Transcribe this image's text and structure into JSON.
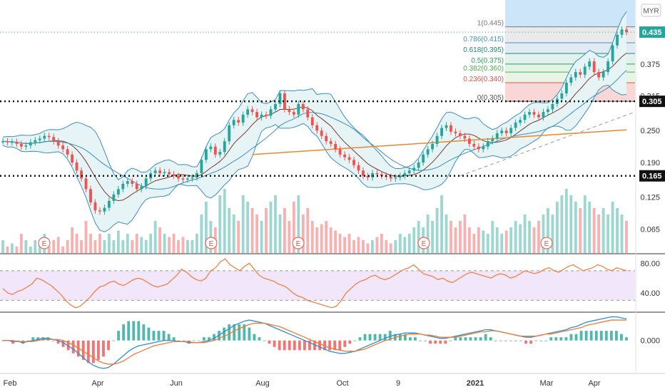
{
  "colors": {
    "up": "#26a69a",
    "down": "#ef5350",
    "bb_line": "#3c8fbf",
    "bb_fill": "#e6f4f6",
    "sma_line": "#7a3b2e",
    "long_ma": "#f0862a",
    "rsi_line": "#f07b35",
    "rsi_fill": "#f2e6fb",
    "macd_line": "#2e8fd6",
    "signal_line": "#f07b35",
    "axis_text": "#333333",
    "last_price_bg": "#26a69a"
  },
  "header": {
    "currency": "MYR"
  },
  "chart_data": [
    {
      "type": "candlestick",
      "title": "",
      "ylim": [
        0.02,
        0.49
      ],
      "y_ticks": [
        "0.065",
        "0.125",
        "0.190",
        "0.250",
        "0.315",
        "0.375"
      ],
      "x_ticks": [
        "Feb",
        "Apr",
        "Jun",
        "Aug",
        "Oct",
        "9",
        "2021",
        "Mar",
        "Apr"
      ],
      "x_ticks_bold": [
        "2021"
      ],
      "price_labels": [
        {
          "text": "0.435",
          "value": 0.435,
          "style": "last"
        },
        {
          "text": "0.305",
          "value": 0.305,
          "style": "level"
        },
        {
          "text": "0.165",
          "value": 0.165,
          "style": "level"
        }
      ],
      "horizontal_levels": [
        0.305,
        0.165
      ],
      "fibonacci": {
        "levels": [
          {
            "label": "1(0.445)",
            "value": 0.445,
            "color": "#777777"
          },
          {
            "label": "0.786(0.415)",
            "value": 0.415,
            "color": "#4a90c8"
          },
          {
            "label": "0.618(0.395)",
            "value": 0.395,
            "color": "#1f8a70"
          },
          {
            "label": "0.5(0.375)",
            "value": 0.375,
            "color": "#2e9c5a"
          },
          {
            "label": "0.382(0.360)",
            "value": 0.36,
            "color": "#4caf50"
          },
          {
            "label": "0.236(0.340)",
            "value": 0.34,
            "color": "#e0524a"
          },
          {
            "label": "0(0.305)",
            "value": 0.305,
            "color": "#555555"
          }
        ]
      },
      "earnings_markers": [
        "E",
        "E",
        "E",
        "E",
        "E"
      ],
      "price_path": [
        0.23,
        0.228,
        0.229,
        0.225,
        0.22,
        0.222,
        0.228,
        0.232,
        0.235,
        0.24,
        0.238,
        0.23,
        0.222,
        0.215,
        0.205,
        0.19,
        0.175,
        0.16,
        0.14,
        0.115,
        0.1,
        0.098,
        0.105,
        0.118,
        0.13,
        0.14,
        0.15,
        0.155,
        0.15,
        0.14,
        0.145,
        0.16,
        0.17,
        0.175,
        0.17,
        0.172,
        0.168,
        0.165,
        0.16,
        0.158,
        0.16,
        0.162,
        0.17,
        0.195,
        0.215,
        0.22,
        0.205,
        0.21,
        0.23,
        0.26,
        0.27,
        0.265,
        0.28,
        0.29,
        0.285,
        0.275,
        0.28,
        0.278,
        0.29,
        0.3,
        0.32,
        0.29,
        0.285,
        0.28,
        0.3,
        0.29,
        0.275,
        0.26,
        0.25,
        0.24,
        0.23,
        0.225,
        0.215,
        0.205,
        0.2,
        0.195,
        0.185,
        0.175,
        0.165,
        0.162,
        0.17,
        0.168,
        0.165,
        0.163,
        0.16,
        0.162,
        0.165,
        0.17,
        0.175,
        0.18,
        0.19,
        0.205,
        0.215,
        0.225,
        0.24,
        0.255,
        0.26,
        0.248,
        0.245,
        0.24,
        0.235,
        0.225,
        0.22,
        0.215,
        0.22,
        0.23,
        0.235,
        0.245,
        0.25,
        0.245,
        0.255,
        0.265,
        0.27,
        0.28,
        0.285,
        0.28,
        0.275,
        0.285,
        0.29,
        0.3,
        0.31,
        0.32,
        0.34,
        0.35,
        0.36,
        0.355,
        0.37,
        0.38,
        0.36,
        0.35,
        0.36,
        0.38,
        0.41,
        0.43,
        0.44,
        0.435
      ],
      "volume_path": [
        0.2,
        0.1,
        0.15,
        0.1,
        0.3,
        0.2,
        0.1,
        0.2,
        0.15,
        0.3,
        0.1,
        0.2,
        0.25,
        0.1,
        0.2,
        0.4,
        0.3,
        0.2,
        0.5,
        0.3,
        0.2,
        0.3,
        0.2,
        0.3,
        0.2,
        0.35,
        0.2,
        0.3,
        0.2,
        0.3,
        0.25,
        0.2,
        0.3,
        0.5,
        0.4,
        0.3,
        0.25,
        0.3,
        0.2,
        0.25,
        0.2,
        0.2,
        0.3,
        0.6,
        0.8,
        0.5,
        0.4,
        0.9,
        1.0,
        0.7,
        0.6,
        0.5,
        0.9,
        0.8,
        0.7,
        0.6,
        0.5,
        0.7,
        0.8,
        0.9,
        0.6,
        0.7,
        0.5,
        0.8,
        0.9,
        0.6,
        0.7,
        0.5,
        0.4,
        0.45,
        0.5,
        0.4,
        0.35,
        0.3,
        0.25,
        0.3,
        0.2,
        0.25,
        0.2,
        0.15,
        0.2,
        0.25,
        0.3,
        0.2,
        0.15,
        0.2,
        0.3,
        0.25,
        0.3,
        0.4,
        0.5,
        0.4,
        0.6,
        0.5,
        0.7,
        0.9,
        0.6,
        0.5,
        0.4,
        0.5,
        0.6,
        0.4,
        0.3,
        0.4,
        0.35,
        0.3,
        0.5,
        0.4,
        0.3,
        0.35,
        0.4,
        0.5,
        0.45,
        0.6,
        0.5,
        0.4,
        0.5,
        0.6,
        0.7,
        0.6,
        0.8,
        0.9,
        1.0,
        0.9,
        0.8,
        0.7,
        0.9,
        0.8,
        0.7,
        0.6,
        0.7,
        0.6,
        0.8,
        0.7,
        0.6,
        0.5
      ]
    },
    {
      "type": "line",
      "name": "RSI panel",
      "ylim": [
        15,
        92
      ],
      "y_ticks": [
        "80.00",
        "40.00"
      ],
      "band": [
        30,
        70
      ],
      "values": [
        46,
        40,
        38,
        42,
        44,
        48,
        52,
        60,
        58,
        54,
        50,
        44,
        38,
        30,
        24,
        20,
        22,
        28,
        34,
        42,
        48,
        50,
        54,
        56,
        52,
        50,
        54,
        58,
        60,
        58,
        54,
        50,
        48,
        50,
        52,
        58,
        64,
        72,
        68,
        62,
        58,
        56,
        60,
        70,
        74,
        82,
        86,
        78,
        74,
        70,
        76,
        80,
        72,
        64,
        60,
        58,
        56,
        52,
        50,
        46,
        40,
        36,
        34,
        30,
        28,
        26,
        24,
        22,
        20,
        22,
        30,
        40,
        46,
        52,
        56,
        58,
        62,
        64,
        60,
        58,
        60,
        64,
        68,
        72,
        74,
        78,
        72,
        66,
        64,
        62,
        58,
        60,
        56,
        54,
        58,
        62,
        66,
        68,
        66,
        64,
        62,
        60,
        64,
        66,
        64,
        60,
        62,
        66,
        70,
        68,
        66,
        68,
        72,
        74,
        70,
        68,
        72,
        76,
        78,
        74,
        70,
        72,
        74,
        78,
        76,
        72,
        70,
        74,
        72,
        70
      ]
    },
    {
      "type": "bar+line",
      "name": "MACD panel",
      "ylim": [
        -0.03,
        0.025
      ],
      "y_ticks": [
        "0.000"
      ],
      "macd": [
        0.0,
        0.0,
        -0.001,
        -0.001,
        -0.002,
        -0.001,
        0.0,
        0.001,
        0.002,
        0.002,
        0.001,
        0.0,
        -0.002,
        -0.005,
        -0.008,
        -0.012,
        -0.016,
        -0.02,
        -0.023,
        -0.025,
        -0.026,
        -0.025,
        -0.022,
        -0.018,
        -0.014,
        -0.01,
        -0.007,
        -0.005,
        -0.004,
        -0.003,
        -0.002,
        -0.001,
        0.0,
        0.0,
        0.0,
        -0.001,
        -0.001,
        -0.002,
        -0.002,
        -0.002,
        -0.001,
        0.0,
        0.002,
        0.005,
        0.008,
        0.011,
        0.014,
        0.016,
        0.018,
        0.019,
        0.018,
        0.017,
        0.016,
        0.014,
        0.012,
        0.01,
        0.008,
        0.006,
        0.004,
        0.002,
        0.0,
        -0.002,
        -0.004,
        -0.006,
        -0.008,
        -0.01,
        -0.011,
        -0.012,
        -0.012,
        -0.011,
        -0.01,
        -0.008,
        -0.006,
        -0.004,
        -0.002,
        0.0,
        0.002,
        0.004,
        0.005,
        0.006,
        0.007,
        0.007,
        0.007,
        0.006,
        0.005,
        0.004,
        0.003,
        0.002,
        0.002,
        0.003,
        0.004,
        0.005,
        0.006,
        0.007,
        0.008,
        0.009,
        0.01,
        0.01,
        0.009,
        0.008,
        0.007,
        0.006,
        0.005,
        0.004,
        0.003,
        0.003,
        0.004,
        0.005,
        0.006,
        0.007,
        0.008,
        0.009,
        0.01,
        0.012,
        0.013,
        0.015,
        0.017,
        0.018,
        0.019,
        0.02,
        0.021,
        0.022,
        0.022,
        0.021,
        0.02
      ],
      "signal": [
        0.0,
        0.0,
        0.0,
        -0.001,
        -0.001,
        -0.001,
        -0.001,
        0.0,
        0.001,
        0.001,
        0.001,
        0.001,
        0.0,
        -0.002,
        -0.004,
        -0.007,
        -0.01,
        -0.013,
        -0.016,
        -0.019,
        -0.021,
        -0.022,
        -0.022,
        -0.021,
        -0.019,
        -0.016,
        -0.013,
        -0.011,
        -0.009,
        -0.007,
        -0.005,
        -0.004,
        -0.003,
        -0.002,
        -0.001,
        -0.001,
        -0.001,
        -0.001,
        -0.002,
        -0.002,
        -0.002,
        -0.001,
        0.0,
        0.002,
        0.004,
        0.006,
        0.009,
        0.011,
        0.013,
        0.015,
        0.016,
        0.016,
        0.016,
        0.015,
        0.014,
        0.013,
        0.011,
        0.009,
        0.007,
        0.005,
        0.003,
        0.001,
        -0.001,
        -0.003,
        -0.005,
        -0.007,
        -0.008,
        -0.009,
        -0.01,
        -0.01,
        -0.01,
        -0.009,
        -0.008,
        -0.006,
        -0.004,
        -0.002,
        0.0,
        0.001,
        0.003,
        0.004,
        0.005,
        0.006,
        0.006,
        0.006,
        0.005,
        0.005,
        0.004,
        0.003,
        0.003,
        0.003,
        0.003,
        0.004,
        0.005,
        0.006,
        0.007,
        0.008,
        0.008,
        0.009,
        0.009,
        0.008,
        0.007,
        0.006,
        0.005,
        0.004,
        0.004,
        0.004,
        0.004,
        0.005,
        0.006,
        0.006,
        0.007,
        0.008,
        0.009,
        0.01,
        0.011,
        0.012,
        0.014,
        0.015,
        0.016,
        0.017,
        0.018,
        0.019,
        0.019,
        0.019,
        0.019
      ]
    }
  ]
}
